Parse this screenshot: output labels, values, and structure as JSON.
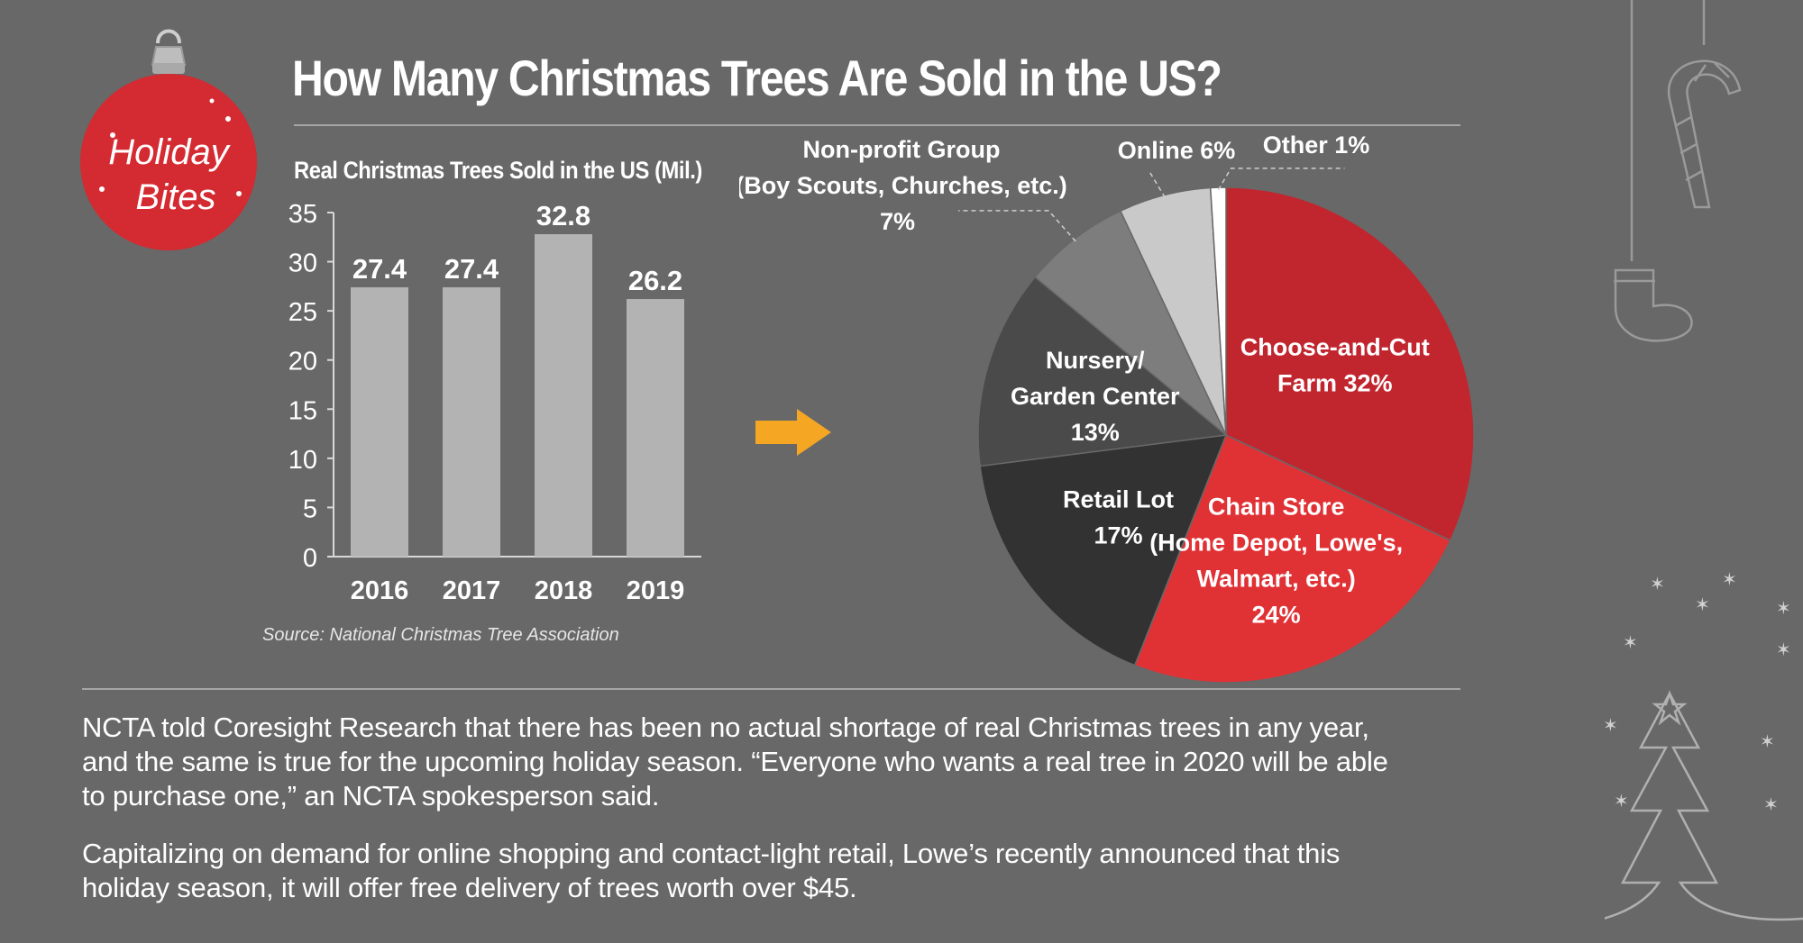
{
  "badge": {
    "line1": "Holiday",
    "line2": "Bites"
  },
  "title": "How Many Christmas Trees Are Sold in the US?",
  "colors": {
    "background": "#686868",
    "bar": "#b3b3b3",
    "accent_red": "#c2232f",
    "arrow": "#f5a623"
  },
  "icons": [
    "ornament-icon",
    "candy-cane-icon",
    "stocking-icon",
    "tree-outline-icon",
    "star-icon",
    "arrow-right-icon"
  ],
  "chart_data": [
    {
      "type": "bar",
      "title": "Real Christmas Trees Sold in the US (Mil.)",
      "categories": [
        "2016",
        "2017",
        "2018",
        "2019"
      ],
      "values": [
        27.4,
        27.4,
        32.8,
        26.2
      ],
      "data_labels": [
        "27.4",
        "27.4",
        "32.8",
        "26.2"
      ],
      "yticks": [
        "0",
        "5",
        "10",
        "15",
        "20",
        "25",
        "30",
        "35"
      ],
      "ylim": [
        0,
        35
      ],
      "grid": false
    },
    {
      "type": "pie",
      "slices": [
        {
          "label_lines": [
            "Choose-and-Cut",
            "Farm 32%"
          ],
          "value": 32,
          "color": "#c1262f"
        },
        {
          "label_lines": [
            "Chain Store",
            "(Home Depot, Lowe's,",
            "Walmart, etc.)",
            "24%"
          ],
          "value": 24,
          "color": "#e03135"
        },
        {
          "label_lines": [
            "Retail Lot",
            "17%"
          ],
          "value": 17,
          "color": "#323232"
        },
        {
          "label_lines": [
            "Nursery/",
            "Garden Center",
            "13%"
          ],
          "value": 13,
          "color": "#4a4a4a"
        },
        {
          "label_lines": [
            "Non-profit Group",
            "(Boy Scouts, Churches, etc.)",
            "7%"
          ],
          "value": 7,
          "color": "#7d7d7d"
        },
        {
          "label_lines": [
            "Online 6%"
          ],
          "value": 6,
          "color": "#c9c9c9"
        },
        {
          "label_lines": [
            "Other 1%"
          ],
          "value": 1,
          "color": "#ffffff"
        }
      ]
    }
  ],
  "source": "Source: National Christmas Tree Association",
  "paragraphs": [
    "NCTA told Coresight Research that there has been no actual shortage of real Christmas trees in any year, and the same is true for the upcoming holiday season. “Everyone who wants a real tree in 2020 will be able to purchase one,” an NCTA spokesperson said.",
    "Capitalizing on demand for online shopping and contact-light retail, Lowe’s recently announced that this holiday season, it will offer free delivery of trees worth over $45."
  ]
}
